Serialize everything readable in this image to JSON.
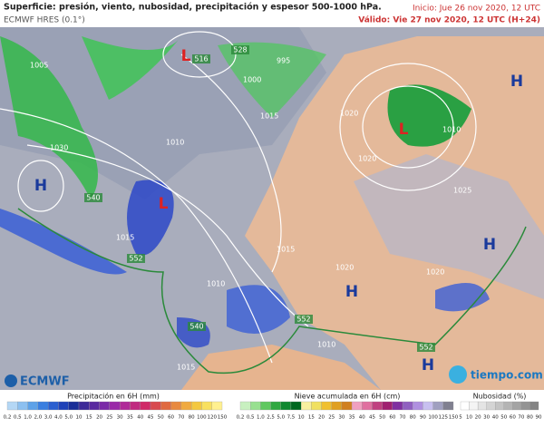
{
  "header": {
    "title": "Superficie: presión, viento, nubosidad, precipitación y espesor 500-1000 hPa.",
    "model": "ECMWF HRES (0.1°)",
    "init": "Inicio: Jue 26 nov 2020, 12 UTC",
    "valid": "Válido: Vie 27 nov 2020, 12 UTC (H+24)"
  },
  "map": {
    "centers": [
      "H",
      "L",
      "L",
      "H",
      "H",
      "H",
      "H",
      "L"
    ],
    "isobars": [
      "1030",
      "1015",
      "1010",
      "1005",
      "1000",
      "995",
      "1020",
      "1015",
      "1010",
      "1015",
      "1020",
      "1010",
      "1015",
      "1020",
      "1025",
      "1020",
      "1010"
    ],
    "thickness": [
      "552",
      "552",
      "552",
      "540",
      "516",
      "528",
      "540"
    ]
  },
  "logos": {
    "left": "ECMWF",
    "right": "tiempo.com"
  },
  "legends": {
    "precip": {
      "title": "Precipitación en 6H (mm)",
      "ticks": [
        "0,2",
        "0,5",
        "1,0",
        "2,0",
        "3,0",
        "4,0",
        "5,0",
        "10",
        "15",
        "20",
        "25",
        "30",
        "35",
        "40",
        "45",
        "50",
        "60",
        "70",
        "80",
        "100",
        "120",
        "150"
      ]
    },
    "snow": {
      "title": "Nieve acumulada en 6H (cm)",
      "ticks": [
        "0,2",
        "0,5",
        "1,0",
        "2,5",
        "5,0",
        "7,5",
        "10",
        "15",
        "20",
        "25",
        "30",
        "35",
        "40",
        "45",
        "50",
        "60",
        "70",
        "80",
        "90",
        "100",
        "125",
        "150"
      ]
    },
    "cloud": {
      "title": "Nubosidad (%)",
      "ticks": [
        "5",
        "10",
        "20",
        "30",
        "40",
        "50",
        "60",
        "70",
        "80",
        "90"
      ]
    }
  }
}
